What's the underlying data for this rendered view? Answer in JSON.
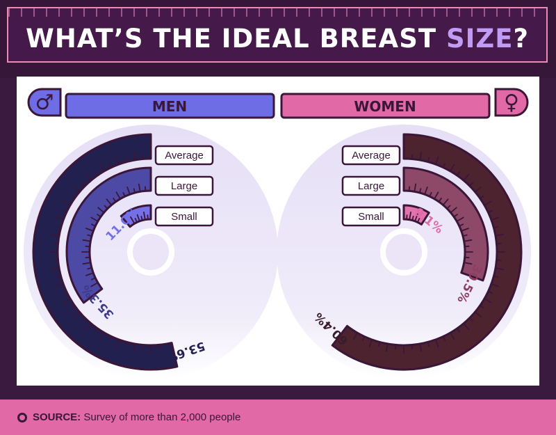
{
  "title": {
    "main": "WHAT’S THE IDEAL BREAST",
    "accent": "SIZE",
    "end": "?"
  },
  "groups": {
    "men": {
      "label": "MEN",
      "icon": "male-symbol-icon",
      "glyph": "♂",
      "color": "#6e6de6"
    },
    "women": {
      "label": "WOMEN",
      "icon": "female-symbol-icon",
      "glyph": "♀",
      "color": "#e16aa6"
    }
  },
  "legend": [
    "Average",
    "Large",
    "Small"
  ],
  "chart_data": [
    {
      "type": "radial-bar",
      "group": "MEN",
      "categories": [
        "Average",
        "Large",
        "Small"
      ],
      "values": [
        53.6,
        35.3,
        11.0
      ],
      "labels": [
        "53.6%",
        "35.3%",
        "11.0%"
      ],
      "colors": [
        "#22204f",
        "#4d4aa6",
        "#7370e8"
      ],
      "label_colors": [
        "#22204f",
        "#3d3a8c",
        "#7370e8"
      ],
      "unit": "%",
      "direction": "counterclockwise"
    },
    {
      "type": "radial-bar",
      "group": "WOMEN",
      "categories": [
        "Average",
        "Large",
        "Small"
      ],
      "values": [
        60.4,
        30.5,
        9.1
      ],
      "labels": [
        "60.4%",
        "30.5%",
        "9.1%"
      ],
      "colors": [
        "#4d2330",
        "#8e4868",
        "#e373ac"
      ],
      "label_colors": [
        "#3a1b2a",
        "#8e3d63",
        "#e06aa6"
      ],
      "unit": "%",
      "direction": "clockwise"
    }
  ],
  "source": {
    "label": "SOURCE:",
    "text": "Survey of more than 2,000 people"
  },
  "colors": {
    "title_accent": "#c09cf4",
    "panel_bg": "#ffffff",
    "footer": "#e16aa6",
    "outline": "#3a1638"
  }
}
